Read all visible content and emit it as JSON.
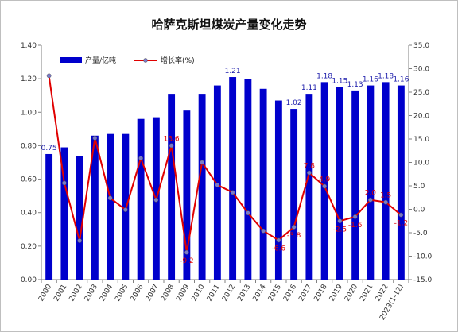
{
  "chart_data": {
    "type": "bar+line",
    "title": "哈萨克斯坦煤炭产量变化走势",
    "categories": [
      "2000",
      "2001",
      "2002",
      "2003",
      "2004",
      "2005",
      "2006",
      "2007",
      "2008",
      "2009",
      "2010",
      "2011",
      "2012",
      "2013",
      "2014",
      "2015",
      "2016",
      "2017",
      "2018",
      "2019",
      "2020",
      "2021",
      "2022",
      "2023(1-12)"
    ],
    "series": [
      {
        "name": "产量/亿吨",
        "type": "bar",
        "axis": "left",
        "color": "#0000cc",
        "values": [
          0.75,
          0.79,
          0.74,
          0.86,
          0.87,
          0.87,
          0.96,
          0.97,
          1.11,
          1.01,
          1.11,
          1.16,
          1.21,
          1.2,
          1.14,
          1.07,
          1.02,
          1.11,
          1.18,
          1.15,
          1.13,
          1.16,
          1.18,
          1.16
        ],
        "data_labels": {
          "0": "0.75",
          "12": "1.21",
          "16": "1.02",
          "17": "1.11",
          "18": "1.18",
          "19": "1.15",
          "20": "1.13",
          "21": "1.16",
          "22": "1.18",
          "23": "1.16"
        }
      },
      {
        "name": "增长率(%)",
        "type": "line",
        "axis": "right",
        "color": "#e00000",
        "values": [
          28.5,
          5.6,
          -6.7,
          15.2,
          2.4,
          -0.1,
          10.9,
          2.0,
          13.6,
          -9.2,
          10.0,
          5.2,
          3.6,
          -0.8,
          -4.6,
          -6.6,
          -3.8,
          7.8,
          4.9,
          -2.5,
          -1.6,
          2.0,
          1.5,
          -1.2
        ],
        "data_labels": {
          "8": "13.6",
          "9": "-9.2",
          "15": "-6.6",
          "16": "-3.8",
          "17": "7.8",
          "18": "4.9",
          "19": "-2.5",
          "20": "-1.6",
          "21": "2.0",
          "22": "1.5",
          "23": "-1.2"
        }
      }
    ],
    "y_left": {
      "min": 0,
      "max": 1.4,
      "ticks": [
        "0.00",
        "0.20",
        "0.40",
        "0.60",
        "0.80",
        "1.00",
        "1.20",
        "1.40"
      ]
    },
    "y_right": {
      "min": -15,
      "max": 35,
      "ticks": [
        "-15.0",
        "-10.0",
        "-5.0",
        "0.0",
        "5.0",
        "10.0",
        "15.0",
        "20.0",
        "25.0",
        "30.0",
        "35.0"
      ]
    },
    "grid": false,
    "legend": {
      "position": "top-left",
      "entries": [
        "产量/亿吨",
        "增长率(%)"
      ]
    }
  }
}
